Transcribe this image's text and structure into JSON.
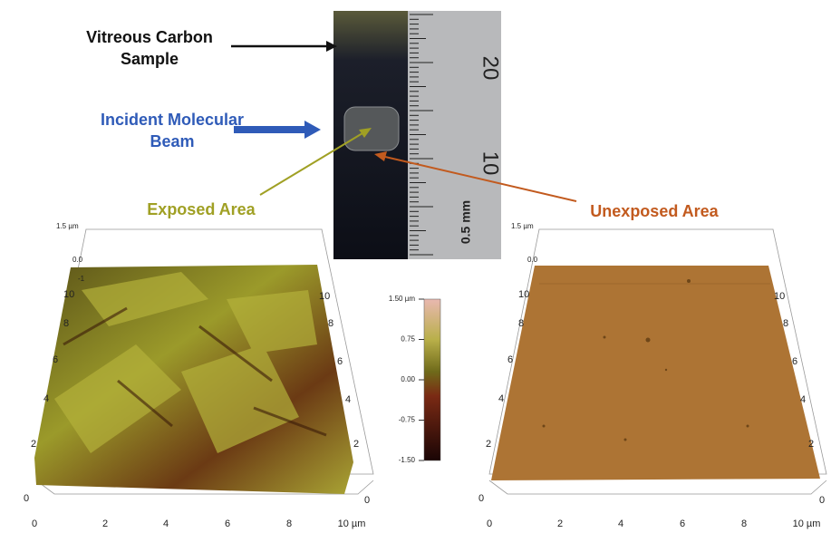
{
  "annotations": {
    "sample": "Vitreous Carbon Sample",
    "beam": "Incident Molecular Beam",
    "exposed": "Exposed Area",
    "unexposed": "Unexposed Area"
  },
  "ruler": {
    "labels": [
      "20",
      "10",
      "0.5 mm"
    ]
  },
  "colorbar": {
    "ticks": [
      "1.50 µm",
      "0.75",
      "0.00",
      "-0.75",
      "-1.50"
    ]
  },
  "left_plot": {
    "z_labels": [
      "1.5 µm",
      "0.0",
      "-1"
    ],
    "y_labels": [
      "10",
      "8",
      "6",
      "4",
      "2",
      "0"
    ],
    "x_labels": [
      "0",
      "2",
      "4",
      "6",
      "8",
      "10 µm"
    ],
    "right_labels": [
      "10",
      "8",
      "6",
      "4",
      "2",
      "0"
    ]
  },
  "right_plot": {
    "z_labels": [
      "1.5 µm",
      "0.0"
    ],
    "y_labels": [
      "10",
      "8",
      "6",
      "4",
      "2",
      "0"
    ],
    "x_labels": [
      "0",
      "2",
      "4",
      "6",
      "8",
      "10 µm"
    ],
    "right_labels": [
      "10",
      "8",
      "6",
      "4",
      "2",
      "0"
    ]
  }
}
